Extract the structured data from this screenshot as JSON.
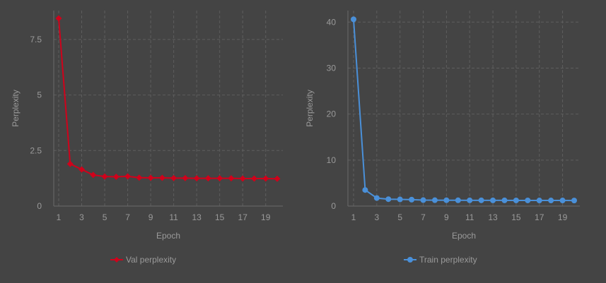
{
  "chart_data": [
    {
      "type": "line",
      "x": [
        1,
        2,
        3,
        4,
        5,
        6,
        7,
        8,
        9,
        10,
        11,
        12,
        13,
        14,
        15,
        16,
        17,
        18,
        19,
        20
      ],
      "xticks": [
        "1",
        "3",
        "5",
        "7",
        "9",
        "11",
        "13",
        "15",
        "17",
        "19"
      ],
      "yticks": [
        "0",
        "2.5",
        "5",
        "7.5"
      ],
      "ylim": [
        0,
        8.8
      ],
      "xlabel": "Epoch",
      "ylabel": "Perplexity",
      "grid": true,
      "legend_position": "bottom",
      "series": [
        {
          "name": "Val perplexity",
          "color": "#d0021b",
          "marker": "diamond",
          "values": [
            8.45,
            1.9,
            1.65,
            1.4,
            1.33,
            1.32,
            1.34,
            1.28,
            1.27,
            1.27,
            1.26,
            1.26,
            1.25,
            1.25,
            1.25,
            1.25,
            1.24,
            1.24,
            1.24,
            1.23
          ]
        }
      ]
    },
    {
      "type": "line",
      "x": [
        1,
        2,
        3,
        4,
        5,
        6,
        7,
        8,
        9,
        10,
        11,
        12,
        13,
        14,
        15,
        16,
        17,
        18,
        19,
        20
      ],
      "xticks": [
        "1",
        "3",
        "5",
        "7",
        "9",
        "11",
        "13",
        "15",
        "17",
        "19"
      ],
      "yticks": [
        "0",
        "10",
        "20",
        "30",
        "40"
      ],
      "ylim": [
        0,
        42.5
      ],
      "xlabel": "Epoch",
      "ylabel": "Perplexity",
      "grid": true,
      "legend_position": "bottom",
      "series": [
        {
          "name": "Train perplexity",
          "color": "#4a90d9",
          "marker": "circle",
          "values": [
            40.6,
            3.5,
            1.75,
            1.5,
            1.45,
            1.4,
            1.3,
            1.28,
            1.27,
            1.26,
            1.25,
            1.25,
            1.24,
            1.24,
            1.23,
            1.23,
            1.22,
            1.22,
            1.22,
            1.21
          ]
        }
      ]
    }
  ]
}
